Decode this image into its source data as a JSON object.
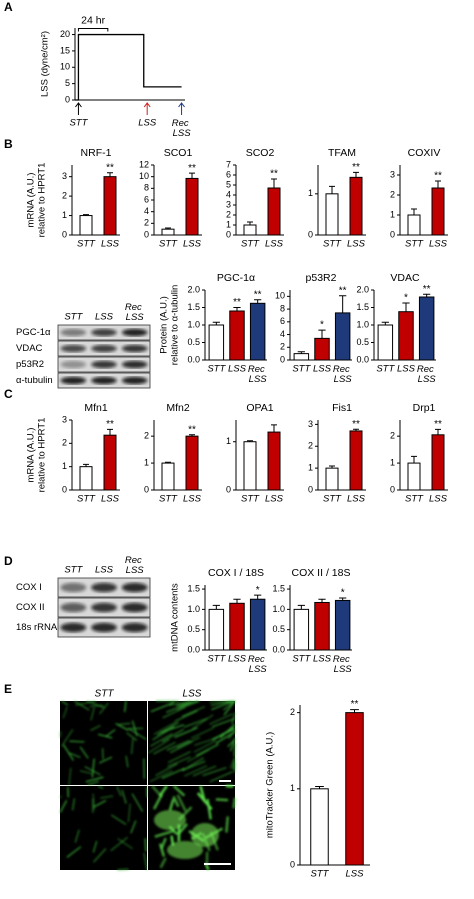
{
  "panels": [
    "A",
    "B",
    "C",
    "D",
    "E"
  ],
  "blots": [
    {
      "columns": [
        "STT",
        "LSS",
        "Rec LSS"
      ],
      "rows": [
        "PGC-1α",
        "VDAC",
        "p53R2",
        "α-tubulin"
      ]
    },
    {
      "columns": [
        "STT",
        "LSS",
        "Rec LSS"
      ],
      "rows": [
        "COX I",
        "COX II",
        "18s rRNA"
      ]
    }
  ],
  "images": {
    "columns": [
      "STT",
      "LSS"
    ]
  },
  "chart_data": [
    {
      "type": "line",
      "ylabel": [
        "LSS (dyne/cm²)"
      ],
      "x": [
        0,
        1,
        1,
        20,
        20,
        31
      ],
      "y": [
        0,
        0,
        20,
        20,
        4,
        4
      ],
      "xlim": [
        0,
        32
      ],
      "ylim": [
        0,
        22
      ],
      "yticks": [
        0,
        5,
        10,
        15,
        20
      ],
      "color": "#000000",
      "annotation": "24 hr",
      "events": [
        {
          "label": "STT",
          "x": 1,
          "color": "#000000"
        },
        {
          "label": "LSS",
          "x": 21,
          "color": "#d02020"
        },
        {
          "label": "Rec LSS",
          "x": 31,
          "color": "#1f3a8a"
        }
      ]
    },
    {
      "type": "bar",
      "title": "NRF-1",
      "ylabel": [
        "mRNA (A.U.)",
        "relative to HPRT1"
      ],
      "categories": [
        "STT",
        "LSS"
      ],
      "values": [
        1,
        3.0
      ],
      "errors": [
        0.05,
        0.2
      ],
      "colors": [
        "#ffffff",
        "#c00000"
      ],
      "significance": [
        null,
        "**"
      ],
      "ylim": [
        0,
        3.6
      ],
      "yticks": [
        0,
        1,
        2,
        3
      ]
    },
    {
      "type": "bar",
      "title": "SCO1",
      "categories": [
        "STT",
        "LSS"
      ],
      "values": [
        1,
        9.7
      ],
      "errors": [
        0.2,
        0.9
      ],
      "colors": [
        "#ffffff",
        "#c00000"
      ],
      "significance": [
        null,
        "**"
      ],
      "ylim": [
        0,
        12
      ],
      "yticks": [
        0,
        2,
        4,
        6,
        8,
        10,
        12
      ]
    },
    {
      "type": "bar",
      "title": "SCO2",
      "categories": [
        "STT",
        "LSS"
      ],
      "values": [
        1,
        4.7
      ],
      "errors": [
        0.3,
        0.9
      ],
      "colors": [
        "#ffffff",
        "#c00000"
      ],
      "significance": [
        null,
        "**"
      ],
      "ylim": [
        0,
        7
      ],
      "yticks": [
        0,
        1,
        2,
        3,
        4,
        5,
        6,
        7
      ]
    },
    {
      "type": "bar",
      "title": "TFAM",
      "categories": [
        "STT",
        "LSS"
      ],
      "values": [
        1,
        1.4
      ],
      "errors": [
        0.18,
        0.12
      ],
      "colors": [
        "#ffffff",
        "#c00000"
      ],
      "significance": [
        null,
        "**"
      ],
      "ylim": [
        0,
        1.7
      ],
      "yticks": [
        0,
        1
      ]
    },
    {
      "type": "bar",
      "title": "COXIV",
      "categories": [
        "STT",
        "LSS"
      ],
      "values": [
        1,
        2.35
      ],
      "errors": [
        0.3,
        0.35
      ],
      "colors": [
        "#ffffff",
        "#c00000"
      ],
      "significance": [
        null,
        "**"
      ],
      "ylim": [
        0,
        3.5
      ],
      "yticks": [
        0,
        1,
        2,
        3
      ]
    },
    {
      "type": "bar",
      "title": "PGC-1α",
      "ylabel": [
        "Protein (A.U.)",
        "relative to α-tubulin"
      ],
      "categories": [
        "STT",
        "LSS",
        "Rec LSS"
      ],
      "values": [
        1,
        1.4,
        1.62
      ],
      "errors": [
        0.08,
        0.1,
        0.1
      ],
      "colors": [
        "#ffffff",
        "#c00000",
        "#1f3a7a"
      ],
      "significance": [
        null,
        "**",
        "**"
      ],
      "ylim": [
        0,
        2
      ],
      "yticks": [
        {
          "value": 0,
          "label": "0.0"
        },
        {
          "value": 0.5,
          "label": "0.5"
        },
        {
          "value": 1,
          "label": "1.0"
        },
        {
          "value": 1.5,
          "label": "1.5"
        },
        {
          "value": 2,
          "label": "2.0"
        }
      ]
    },
    {
      "type": "bar",
      "title": "p53R2",
      "categories": [
        "STT",
        "LSS",
        "Rec LSS"
      ],
      "values": [
        1,
        3.4,
        7.4
      ],
      "errors": [
        0.3,
        1.3,
        2.7
      ],
      "colors": [
        "#ffffff",
        "#c00000",
        "#1f3a7a"
      ],
      "significance": [
        null,
        "*",
        "**"
      ],
      "ylim": [
        0,
        11
      ],
      "yticks": [
        0,
        2,
        4,
        6,
        8,
        10
      ]
    },
    {
      "type": "bar",
      "title": "VDAC",
      "categories": [
        "STT",
        "LSS",
        "Rec LSS"
      ],
      "values": [
        1,
        1.38,
        1.8
      ],
      "errors": [
        0.08,
        0.25,
        0.08
      ],
      "colors": [
        "#ffffff",
        "#c00000",
        "#1f3a7a"
      ],
      "significance": [
        null,
        "*",
        "**"
      ],
      "ylim": [
        0,
        2
      ],
      "yticks": [
        {
          "value": 0,
          "label": "0.0"
        },
        {
          "value": 0.5,
          "label": "0.5"
        },
        {
          "value": 1,
          "label": "1.0"
        },
        {
          "value": 1.5,
          "label": "1.5"
        },
        {
          "value": 2,
          "label": "2.0"
        }
      ]
    },
    {
      "type": "bar",
      "title": "Mfn1",
      "ylabel": [
        "mRNA (A.U.)",
        "relative to HPRT1"
      ],
      "categories": [
        "STT",
        "LSS"
      ],
      "values": [
        1,
        2.35
      ],
      "errors": [
        0.1,
        0.25
      ],
      "colors": [
        "#ffffff",
        "#c00000"
      ],
      "significance": [
        null,
        "**"
      ],
      "ylim": [
        0,
        3
      ],
      "yticks": [
        0,
        1,
        2,
        3
      ]
    },
    {
      "type": "bar",
      "title": "Mfn2",
      "categories": [
        "STT",
        "LSS"
      ],
      "values": [
        1,
        2.0
      ],
      "errors": [
        0.03,
        0.05
      ],
      "colors": [
        "#ffffff",
        "#c00000"
      ],
      "significance": [
        null,
        "**"
      ],
      "ylim": [
        0,
        2.6
      ],
      "yticks": [
        0,
        1,
        2
      ]
    },
    {
      "type": "bar",
      "title": "OPA1",
      "categories": [
        "STT",
        "LSS"
      ],
      "values": [
        1,
        1.2
      ],
      "errors": [
        0.02,
        0.15
      ],
      "colors": [
        "#ffffff",
        "#c00000"
      ],
      "significance": [
        null,
        null
      ],
      "ylim": [
        0,
        1.45
      ],
      "yticks": [
        0,
        1
      ]
    },
    {
      "type": "bar",
      "title": "Fis1",
      "categories": [
        "STT",
        "LSS"
      ],
      "values": [
        1,
        2.7
      ],
      "errors": [
        0.1,
        0.08
      ],
      "colors": [
        "#ffffff",
        "#c00000"
      ],
      "significance": [
        null,
        "**"
      ],
      "ylim": [
        0,
        3.2
      ],
      "yticks": [
        0,
        1,
        2,
        3
      ]
    },
    {
      "type": "bar",
      "title": "Drp1",
      "categories": [
        "STT",
        "LSS"
      ],
      "values": [
        1,
        2.05
      ],
      "errors": [
        0.25,
        0.2
      ],
      "colors": [
        "#ffffff",
        "#c00000"
      ],
      "significance": [
        null,
        "**"
      ],
      "ylim": [
        0,
        2.6
      ],
      "yticks": [
        0,
        1,
        2
      ]
    },
    {
      "type": "bar",
      "title": "COX I / 18S",
      "ylabel": [
        "mtDNA contents"
      ],
      "categories": [
        "STT",
        "LSS",
        "Rec LSS"
      ],
      "values": [
        1,
        1.15,
        1.25
      ],
      "errors": [
        0.1,
        0.1,
        0.1
      ],
      "colors": [
        "#ffffff",
        "#c00000",
        "#1f3a7a"
      ],
      "significance": [
        null,
        null,
        "*"
      ],
      "ylim": [
        0,
        1.6
      ],
      "yticks": [
        {
          "value": 0,
          "label": "0.0"
        },
        {
          "value": 0.5,
          "label": "0.5"
        },
        {
          "value": 1,
          "label": "1.0"
        },
        {
          "value": 1.5,
          "label": "1.5"
        }
      ]
    },
    {
      "type": "bar",
      "title": "COX II / 18S",
      "categories": [
        "STT",
        "LSS",
        "Rec LSS"
      ],
      "values": [
        1,
        1.17,
        1.22
      ],
      "errors": [
        0.1,
        0.08,
        0.06
      ],
      "colors": [
        "#ffffff",
        "#c00000",
        "#1f3a7a"
      ],
      "significance": [
        null,
        null,
        "*"
      ],
      "ylim": [
        0,
        1.6
      ],
      "yticks": [
        {
          "value": 0,
          "label": "0.0"
        },
        {
          "value": 0.5,
          "label": "0.5"
        },
        {
          "value": 1,
          "label": "1.0"
        },
        {
          "value": 1.5,
          "label": "1.5"
        }
      ]
    },
    {
      "type": "bar",
      "ylabel": [
        "mitoTracker Green (A.U.)"
      ],
      "categories": [
        "STT",
        "LSS"
      ],
      "values": [
        1,
        2.0
      ],
      "errors": [
        0.03,
        0.04
      ],
      "colors": [
        "#ffffff",
        "#c00000"
      ],
      "significance": [
        null,
        "**"
      ],
      "ylim": [
        0,
        2.1
      ],
      "yticks": [
        0,
        1,
        2
      ]
    }
  ]
}
